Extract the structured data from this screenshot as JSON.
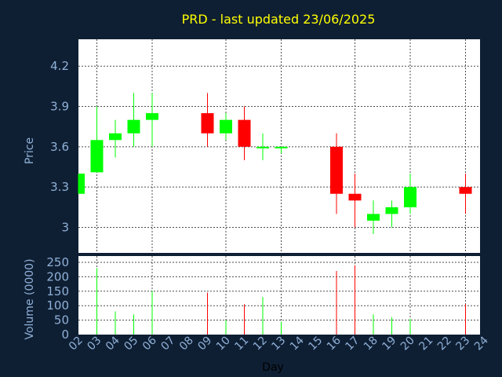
{
  "chart_data": [
    {
      "type": "candlestick",
      "title": "PRD - last updated 23/06/2025",
      "ylabel": "Price",
      "ylim": [
        2.81,
        4.4
      ],
      "yticks": [
        "4.2",
        "3.9",
        "3.6",
        "3.3",
        "3"
      ],
      "ytick_values": [
        4.2,
        3.9,
        3.6,
        3.3,
        3.0
      ],
      "grid": true,
      "candles": [
        {
          "day": "02",
          "open": 3.25,
          "high": 3.4,
          "low": 3.25,
          "close": 3.4
        },
        {
          "day": "03",
          "open": 3.41,
          "high": 3.9,
          "low": 3.41,
          "close": 3.65
        },
        {
          "day": "04",
          "open": 3.65,
          "high": 3.8,
          "low": 3.52,
          "close": 3.7
        },
        {
          "day": "05",
          "open": 3.7,
          "high": 4.0,
          "low": 3.6,
          "close": 3.8
        },
        {
          "day": "06",
          "open": 3.8,
          "high": 4.0,
          "low": 3.6,
          "close": 3.85
        },
        {
          "day": "09",
          "open": 3.85,
          "high": 4.0,
          "low": 3.6,
          "close": 3.7
        },
        {
          "day": "10",
          "open": 3.7,
          "high": 3.85,
          "low": 3.65,
          "close": 3.8
        },
        {
          "day": "11",
          "open": 3.8,
          "high": 3.9,
          "low": 3.5,
          "close": 3.6
        },
        {
          "day": "12",
          "open": 3.59,
          "high": 3.7,
          "low": 3.5,
          "close": 3.6
        },
        {
          "day": "13",
          "open": 3.59,
          "high": 3.6,
          "low": 3.55,
          "close": 3.6
        },
        {
          "day": "16",
          "open": 3.6,
          "high": 3.7,
          "low": 3.1,
          "close": 3.25
        },
        {
          "day": "17",
          "open": 3.25,
          "high": 3.4,
          "low": 3.0,
          "close": 3.2
        },
        {
          "day": "18",
          "open": 3.05,
          "high": 3.2,
          "low": 2.95,
          "close": 3.1
        },
        {
          "day": "19",
          "open": 3.1,
          "high": 3.2,
          "low": 3.0,
          "close": 3.15
        },
        {
          "day": "20",
          "open": 3.15,
          "high": 3.4,
          "low": 3.1,
          "close": 3.3
        },
        {
          "day": "23",
          "open": 3.3,
          "high": 3.4,
          "low": 3.1,
          "close": 3.25
        }
      ]
    },
    {
      "type": "bar",
      "ylabel": "Volume (0000)",
      "xlabel": "Day",
      "ylim": [
        0,
        250
      ],
      "yticks": [
        "250",
        "200",
        "150",
        "100",
        "50",
        "0"
      ],
      "ytick_values": [
        250,
        200,
        150,
        100,
        50,
        0
      ],
      "categories": [
        "02",
        "03",
        "04",
        "05",
        "06",
        "07",
        "08",
        "09",
        "10",
        "11",
        "12",
        "13",
        "14",
        "15",
        "16",
        "17",
        "18",
        "19",
        "20",
        "21",
        "22",
        "23",
        "24"
      ],
      "volumes": [
        {
          "day": "03",
          "value": 230,
          "direction": "up"
        },
        {
          "day": "04",
          "value": 80,
          "direction": "up"
        },
        {
          "day": "05",
          "value": 70,
          "direction": "up"
        },
        {
          "day": "06",
          "value": 150,
          "direction": "up"
        },
        {
          "day": "09",
          "value": 145,
          "direction": "down"
        },
        {
          "day": "10",
          "value": 50,
          "direction": "up"
        },
        {
          "day": "11",
          "value": 105,
          "direction": "down"
        },
        {
          "day": "12",
          "value": 130,
          "direction": "up"
        },
        {
          "day": "13",
          "value": 45,
          "direction": "up"
        },
        {
          "day": "16",
          "value": 220,
          "direction": "down"
        },
        {
          "day": "17",
          "value": 240,
          "direction": "down"
        },
        {
          "day": "18",
          "value": 70,
          "direction": "up"
        },
        {
          "day": "19",
          "value": 60,
          "direction": "up"
        },
        {
          "day": "20",
          "value": 55,
          "direction": "up"
        },
        {
          "day": "23",
          "value": 105,
          "direction": "down"
        }
      ],
      "grid": true
    }
  ],
  "colors": {
    "background": "#0f1f33",
    "plot_bg": "#ffffff",
    "up": "#00ff00",
    "down": "#ff0000",
    "title": "#ffff00",
    "axis_text": "#8fb0d8",
    "grid": "#4d4d4d"
  }
}
